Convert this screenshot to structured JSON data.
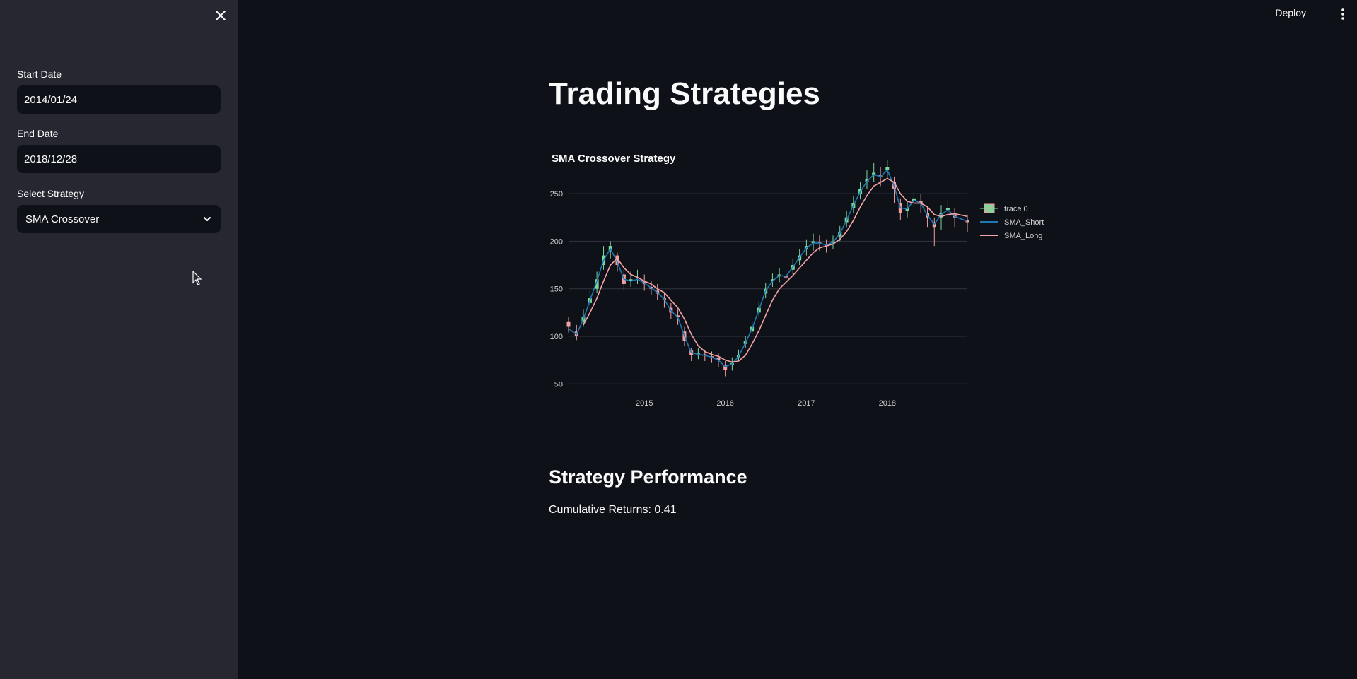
{
  "sidebar": {
    "fields": {
      "start_date": {
        "label": "Start Date",
        "value": "2014/01/24"
      },
      "end_date": {
        "label": "End Date",
        "value": "2018/12/28"
      },
      "strategy": {
        "label": "Select Strategy",
        "value": "SMA Crossover"
      }
    },
    "close_icon": "close-icon",
    "dropdown_icon": "chevron-down-icon"
  },
  "header": {
    "deploy_label": "Deploy",
    "menu_icon": "kebab-menu-icon"
  },
  "main": {
    "title": "Trading Strategies",
    "section_title": "Strategy Performance",
    "returns_label": "Cumulative Returns:",
    "returns_value": "0.41"
  },
  "colors": {
    "background": "#0e1117",
    "sidebar": "#262730",
    "increasing": "#7bd89a",
    "decreasing": "#f2a0a0",
    "sma_short": "#1f77b4",
    "sma_long": "#f4a3a8"
  },
  "chart_data": {
    "type": "line",
    "title": "SMA Crossover Strategy",
    "xlabel": "",
    "ylabel": "",
    "x_ticks": [
      "2015",
      "2016",
      "2017",
      "2018"
    ],
    "y_ticks": [
      50,
      100,
      150,
      200,
      250
    ],
    "ylim": [
      45,
      285
    ],
    "xlim": [
      "2014-01-24",
      "2018-12-28"
    ],
    "grid": true,
    "legend": "top-right",
    "series": [
      {
        "name": "trace 0",
        "kind": "candlestick",
        "x": [
          "2014-01-24",
          "2014-03-01",
          "2014-04-01",
          "2014-05-01",
          "2014-06-01",
          "2014-07-01",
          "2014-08-01",
          "2014-09-01",
          "2014-10-01",
          "2014-11-01",
          "2014-12-01",
          "2015-01-01",
          "2015-02-01",
          "2015-03-01",
          "2015-04-01",
          "2015-05-01",
          "2015-06-01",
          "2015-07-01",
          "2015-08-01",
          "2015-09-01",
          "2015-10-01",
          "2015-11-01",
          "2015-12-01",
          "2016-01-01",
          "2016-02-01",
          "2016-03-01",
          "2016-04-01",
          "2016-05-01",
          "2016-06-01",
          "2016-07-01",
          "2016-08-01",
          "2016-09-01",
          "2016-10-01",
          "2016-11-01",
          "2016-12-01",
          "2017-01-01",
          "2017-02-01",
          "2017-03-01",
          "2017-04-01",
          "2017-05-01",
          "2017-06-01",
          "2017-07-01",
          "2017-08-01",
          "2017-09-01",
          "2017-10-01",
          "2017-11-01",
          "2017-12-01",
          "2018-01-01",
          "2018-02-01",
          "2018-03-01",
          "2018-04-01",
          "2018-05-01",
          "2018-06-01",
          "2018-07-01",
          "2018-08-01",
          "2018-09-01",
          "2018-10-01",
          "2018-11-01",
          "2018-12-28"
        ],
        "values": [
          110,
          100,
          120,
          140,
          160,
          185,
          195,
          175,
          155,
          160,
          162,
          155,
          150,
          145,
          138,
          125,
          120,
          95,
          80,
          82,
          80,
          78,
          75,
          65,
          72,
          80,
          95,
          110,
          130,
          150,
          160,
          165,
          162,
          175,
          185,
          195,
          200,
          198,
          195,
          200,
          210,
          225,
          240,
          255,
          265,
          272,
          268,
          278,
          255,
          230,
          235,
          245,
          240,
          225,
          215,
          230,
          235,
          225,
          220
        ],
        "open": [
          115,
          105,
          115,
          135,
          150,
          175,
          190,
          185,
          165,
          158,
          162,
          158,
          152,
          148,
          140,
          130,
          122,
          105,
          85,
          82,
          81,
          79,
          77,
          70,
          70,
          78,
          92,
          105,
          125,
          145,
          158,
          163,
          163,
          170,
          180,
          192,
          198,
          199,
          196,
          198,
          205,
          220,
          235,
          250,
          262,
          270,
          270,
          275,
          262,
          240,
          232,
          242,
          242,
          230,
          220,
          225,
          233,
          228,
          222
        ],
        "close": [
          110,
          100,
          120,
          140,
          160,
          185,
          195,
          175,
          155,
          160,
          162,
          155,
          150,
          145,
          138,
          125,
          120,
          95,
          80,
          82,
          80,
          78,
          75,
          65,
          72,
          80,
          95,
          110,
          130,
          150,
          160,
          165,
          162,
          175,
          185,
          195,
          200,
          198,
          195,
          200,
          210,
          225,
          240,
          255,
          265,
          272,
          268,
          278,
          255,
          230,
          235,
          245,
          240,
          225,
          215,
          230,
          235,
          225,
          220
        ],
        "high": [
          120,
          112,
          128,
          148,
          168,
          195,
          200,
          188,
          170,
          168,
          170,
          165,
          158,
          155,
          146,
          135,
          128,
          110,
          88,
          88,
          86,
          84,
          82,
          74,
          78,
          86,
          100,
          116,
          136,
          156,
          166,
          172,
          170,
          182,
          192,
          202,
          208,
          206,
          202,
          206,
          216,
          232,
          248,
          262,
          275,
          282,
          278,
          285,
          268,
          245,
          242,
          252,
          250,
          236,
          225,
          238,
          242,
          235,
          228
        ],
        "low": [
          104,
          96,
          110,
          130,
          146,
          170,
          182,
          168,
          148,
          152,
          155,
          148,
          144,
          138,
          130,
          118,
          112,
          90,
          74,
          76,
          74,
          72,
          68,
          58,
          64,
          74,
          88,
          102,
          120,
          140,
          152,
          157,
          155,
          165,
          175,
          185,
          190,
          190,
          188,
          192,
          200,
          215,
          230,
          244,
          255,
          262,
          258,
          266,
          240,
          222,
          225,
          234,
          230,
          215,
          195,
          212,
          225,
          215,
          210
        ]
      },
      {
        "name": "SMA_Short",
        "x": [
          "2014-01-24",
          "2014-03-01",
          "2014-04-01",
          "2014-05-01",
          "2014-06-01",
          "2014-07-01",
          "2014-08-01",
          "2014-09-01",
          "2014-10-01",
          "2014-11-01",
          "2014-12-01",
          "2015-01-01",
          "2015-02-01",
          "2015-03-01",
          "2015-04-01",
          "2015-05-01",
          "2015-06-01",
          "2015-07-01",
          "2015-08-01",
          "2015-09-01",
          "2015-10-01",
          "2015-11-01",
          "2015-12-01",
          "2016-01-01",
          "2016-02-01",
          "2016-03-01",
          "2016-04-01",
          "2016-05-01",
          "2016-06-01",
          "2016-07-01",
          "2016-08-01",
          "2016-09-01",
          "2016-10-01",
          "2016-11-01",
          "2016-12-01",
          "2017-01-01",
          "2017-02-01",
          "2017-03-01",
          "2017-04-01",
          "2017-05-01",
          "2017-06-01",
          "2017-07-01",
          "2017-08-01",
          "2017-09-01",
          "2017-10-01",
          "2017-11-01",
          "2017-12-01",
          "2018-01-01",
          "2018-02-01",
          "2018-03-01",
          "2018-04-01",
          "2018-05-01",
          "2018-06-01",
          "2018-07-01",
          "2018-08-01",
          "2018-09-01",
          "2018-10-01",
          "2018-11-01",
          "2018-12-28"
        ],
        "values": [
          108,
          102,
          118,
          138,
          158,
          180,
          192,
          178,
          160,
          158,
          160,
          156,
          151,
          146,
          139,
          127,
          120,
          100,
          83,
          81,
          80,
          78,
          75,
          68,
          71,
          79,
          93,
          108,
          128,
          148,
          158,
          164,
          163,
          173,
          183,
          193,
          198,
          198,
          196,
          199,
          208,
          222,
          238,
          252,
          263,
          270,
          268,
          275,
          258,
          235,
          234,
          243,
          240,
          227,
          218,
          228,
          233,
          226,
          221
        ]
      },
      {
        "name": "SMA_Long",
        "x": [
          "2014-01-24",
          "2014-03-01",
          "2014-04-01",
          "2014-05-01",
          "2014-06-01",
          "2014-07-01",
          "2014-08-01",
          "2014-09-01",
          "2014-10-01",
          "2014-11-01",
          "2014-12-01",
          "2015-01-01",
          "2015-02-01",
          "2015-03-01",
          "2015-04-01",
          "2015-05-01",
          "2015-06-01",
          "2015-07-01",
          "2015-08-01",
          "2015-09-01",
          "2015-10-01",
          "2015-11-01",
          "2015-12-01",
          "2016-01-01",
          "2016-02-01",
          "2016-03-01",
          "2016-04-01",
          "2016-05-01",
          "2016-06-01",
          "2016-07-01",
          "2016-08-01",
          "2016-09-01",
          "2016-10-01",
          "2016-11-01",
          "2016-12-01",
          "2017-01-01",
          "2017-02-01",
          "2017-03-01",
          "2017-04-01",
          "2017-05-01",
          "2017-06-01",
          "2017-07-01",
          "2017-08-01",
          "2017-09-01",
          "2017-10-01",
          "2017-11-01",
          "2017-12-01",
          "2018-01-01",
          "2018-02-01",
          "2018-03-01",
          "2018-04-01",
          "2018-05-01",
          "2018-06-01",
          "2018-07-01",
          "2018-08-01",
          "2018-09-01",
          "2018-10-01",
          "2018-11-01",
          "2018-12-28"
        ],
        "values": [
          null,
          null,
          112,
          125,
          140,
          158,
          175,
          182,
          172,
          165,
          162,
          158,
          155,
          150,
          146,
          138,
          130,
          118,
          102,
          90,
          84,
          81,
          79,
          75,
          73,
          74,
          80,
          92,
          106,
          122,
          138,
          150,
          157,
          164,
          172,
          180,
          188,
          193,
          195,
          197,
          202,
          210,
          222,
          236,
          248,
          258,
          262,
          266,
          262,
          250,
          242,
          240,
          240,
          236,
          228,
          226,
          228,
          229,
          226
        ]
      }
    ]
  }
}
